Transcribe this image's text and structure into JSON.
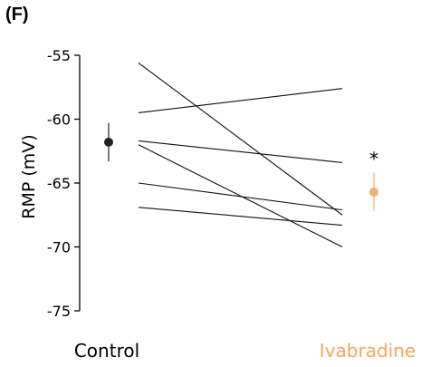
{
  "panel_label": "(F)",
  "chart_data": {
    "type": "line",
    "ylabel": "RMP (mV)",
    "xlabel": "",
    "ylim": [
      -75,
      -55
    ],
    "yticks": [
      -55,
      -60,
      -65,
      -70,
      -75
    ],
    "categories": [
      "Control",
      "Ivabradine"
    ],
    "category_colors": [
      "#000000",
      "#f0a860"
    ],
    "paired_lines": [
      {
        "control": -55.6,
        "ivabradine": -67.5
      },
      {
        "control": -59.5,
        "ivabradine": -57.6
      },
      {
        "control": -61.7,
        "ivabradine": -63.4
      },
      {
        "control": -62.0,
        "ivabradine": -70.0
      },
      {
        "control": -65.0,
        "ivabradine": -67.1
      },
      {
        "control": -66.9,
        "ivabradine": -68.3
      }
    ],
    "group_means": [
      {
        "group": "Control",
        "mean": -61.8,
        "error": 1.5,
        "color": "#222222"
      },
      {
        "group": "Ivabradine",
        "mean": -65.7,
        "error": 1.5,
        "color": "#f0b070"
      }
    ],
    "annotations": [
      {
        "text": "*",
        "group": "Ivabradine"
      }
    ],
    "grid": false,
    "legend": "none"
  }
}
